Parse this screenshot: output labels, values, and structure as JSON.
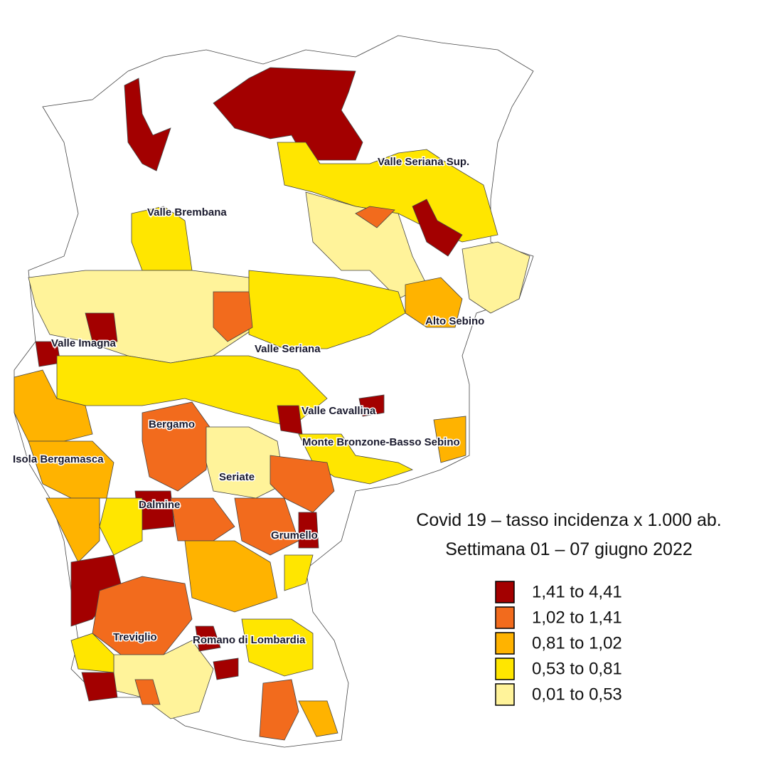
{
  "title": [
    "Covid 19 – tasso incidenza x 1.000 ab.",
    "Settimana 01 – 07 giugno 2022"
  ],
  "legend": [
    {
      "label": "1,41 to 4,41",
      "color": "#a30000"
    },
    {
      "label": "1,02 to 1,41",
      "color": "#f26b1d"
    },
    {
      "label": "0,81 to 1,02",
      "color": "#ffb300"
    },
    {
      "label": "0,53 to 0,81",
      "color": "#ffe600"
    },
    {
      "label": "0,01 to 0,53",
      "color": "#fff39a"
    }
  ],
  "areas": [
    "Valle Seriana Sup.",
    "Valle Brembana",
    "Alto Sebino",
    "Valle Imagna",
    "Valle Seriana",
    "Valle Cavallina",
    "Bergamo",
    "Monte Bronzone-Basso Sebino",
    "Isola Bergamasca",
    "Seriate",
    "Dalmine",
    "Grumello",
    "Treviglio",
    "Romano di Lombardia"
  ]
}
